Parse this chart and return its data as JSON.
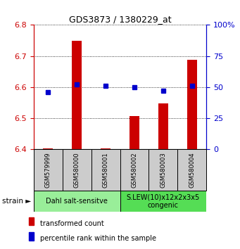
{
  "title": "GDS3873 / 1380229_at",
  "samples": [
    "GSM579999",
    "GSM580000",
    "GSM580001",
    "GSM580002",
    "GSM580003",
    "GSM580004"
  ],
  "transformed_counts": [
    6.403,
    6.748,
    6.403,
    6.508,
    6.548,
    6.688
  ],
  "percentile_ranks": [
    46,
    52,
    51,
    50,
    47,
    51
  ],
  "ylim_left": [
    6.4,
    6.8
  ],
  "ylim_right": [
    0,
    100
  ],
  "yticks_left": [
    6.4,
    6.5,
    6.6,
    6.7,
    6.8
  ],
  "yticks_right": [
    0,
    25,
    50,
    75,
    100
  ],
  "ytick_labels_right": [
    "0",
    "25",
    "50",
    "75",
    "100%"
  ],
  "bar_color": "#cc0000",
  "dot_color": "#0000cc",
  "bar_bottom": 6.4,
  "group1_label": "Dahl salt-sensitve",
  "group2_label": "S.LEW(10)x12x2x3x5\ncongenic",
  "group1_indices": [
    0,
    1,
    2
  ],
  "group2_indices": [
    3,
    4,
    5
  ],
  "group1_color": "#99ee99",
  "group2_color": "#55dd55",
  "sample_box_color": "#cccccc",
  "legend_tc": "transformed count",
  "legend_pr": "percentile rank within the sample",
  "strain_label": "strain",
  "left_axis_color": "#cc0000",
  "right_axis_color": "#0000cc",
  "fig_width": 3.41,
  "fig_height": 3.54,
  "dpi": 100
}
